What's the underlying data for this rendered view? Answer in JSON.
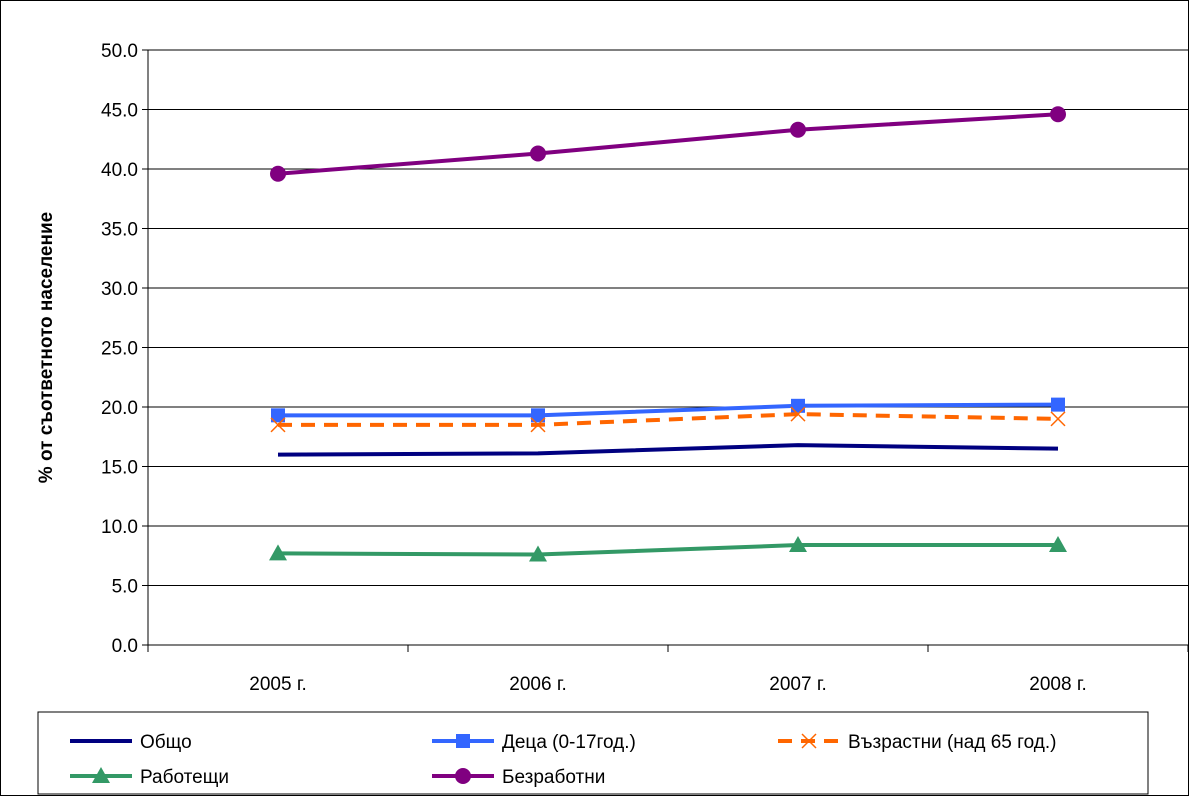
{
  "chart_data": {
    "type": "line",
    "title": "",
    "xlabel": "",
    "ylabel": "% от съответното население",
    "categories": [
      "2005 г.",
      "2006 г.",
      "2007 г.",
      "2008 г."
    ],
    "ylim": [
      0,
      50
    ],
    "yticks": [
      0,
      5,
      10,
      15,
      20,
      25,
      30,
      35,
      40,
      45,
      50
    ],
    "ytick_labels": [
      "0.0",
      "5.0",
      "10.0",
      "15.0",
      "20.0",
      "25.0",
      "30.0",
      "35.0",
      "40.0",
      "45.0",
      "50.0"
    ],
    "grid": true,
    "legend_position": "bottom",
    "series": [
      {
        "name": "Общо",
        "values": [
          16.0,
          16.1,
          16.8,
          16.5
        ],
        "color": "#000080",
        "marker": "none",
        "dash": "solid"
      },
      {
        "name": "Деца (0-17год.)",
        "values": [
          19.3,
          19.3,
          20.1,
          20.2
        ],
        "color": "#3366FF",
        "marker": "square",
        "dash": "solid"
      },
      {
        "name": "Възрастни (над 65 год.)",
        "values": [
          18.5,
          18.5,
          19.4,
          19.0
        ],
        "color": "#FF6600",
        "marker": "x",
        "dash": "dashed"
      },
      {
        "name": "Работещи",
        "values": [
          7.7,
          7.6,
          8.4,
          8.4
        ],
        "color": "#339966",
        "marker": "triangle",
        "dash": "solid"
      },
      {
        "name": "Безработни",
        "values": [
          39.6,
          41.3,
          43.3,
          44.6
        ],
        "color": "#800080",
        "marker": "circle",
        "dash": "solid"
      }
    ]
  }
}
